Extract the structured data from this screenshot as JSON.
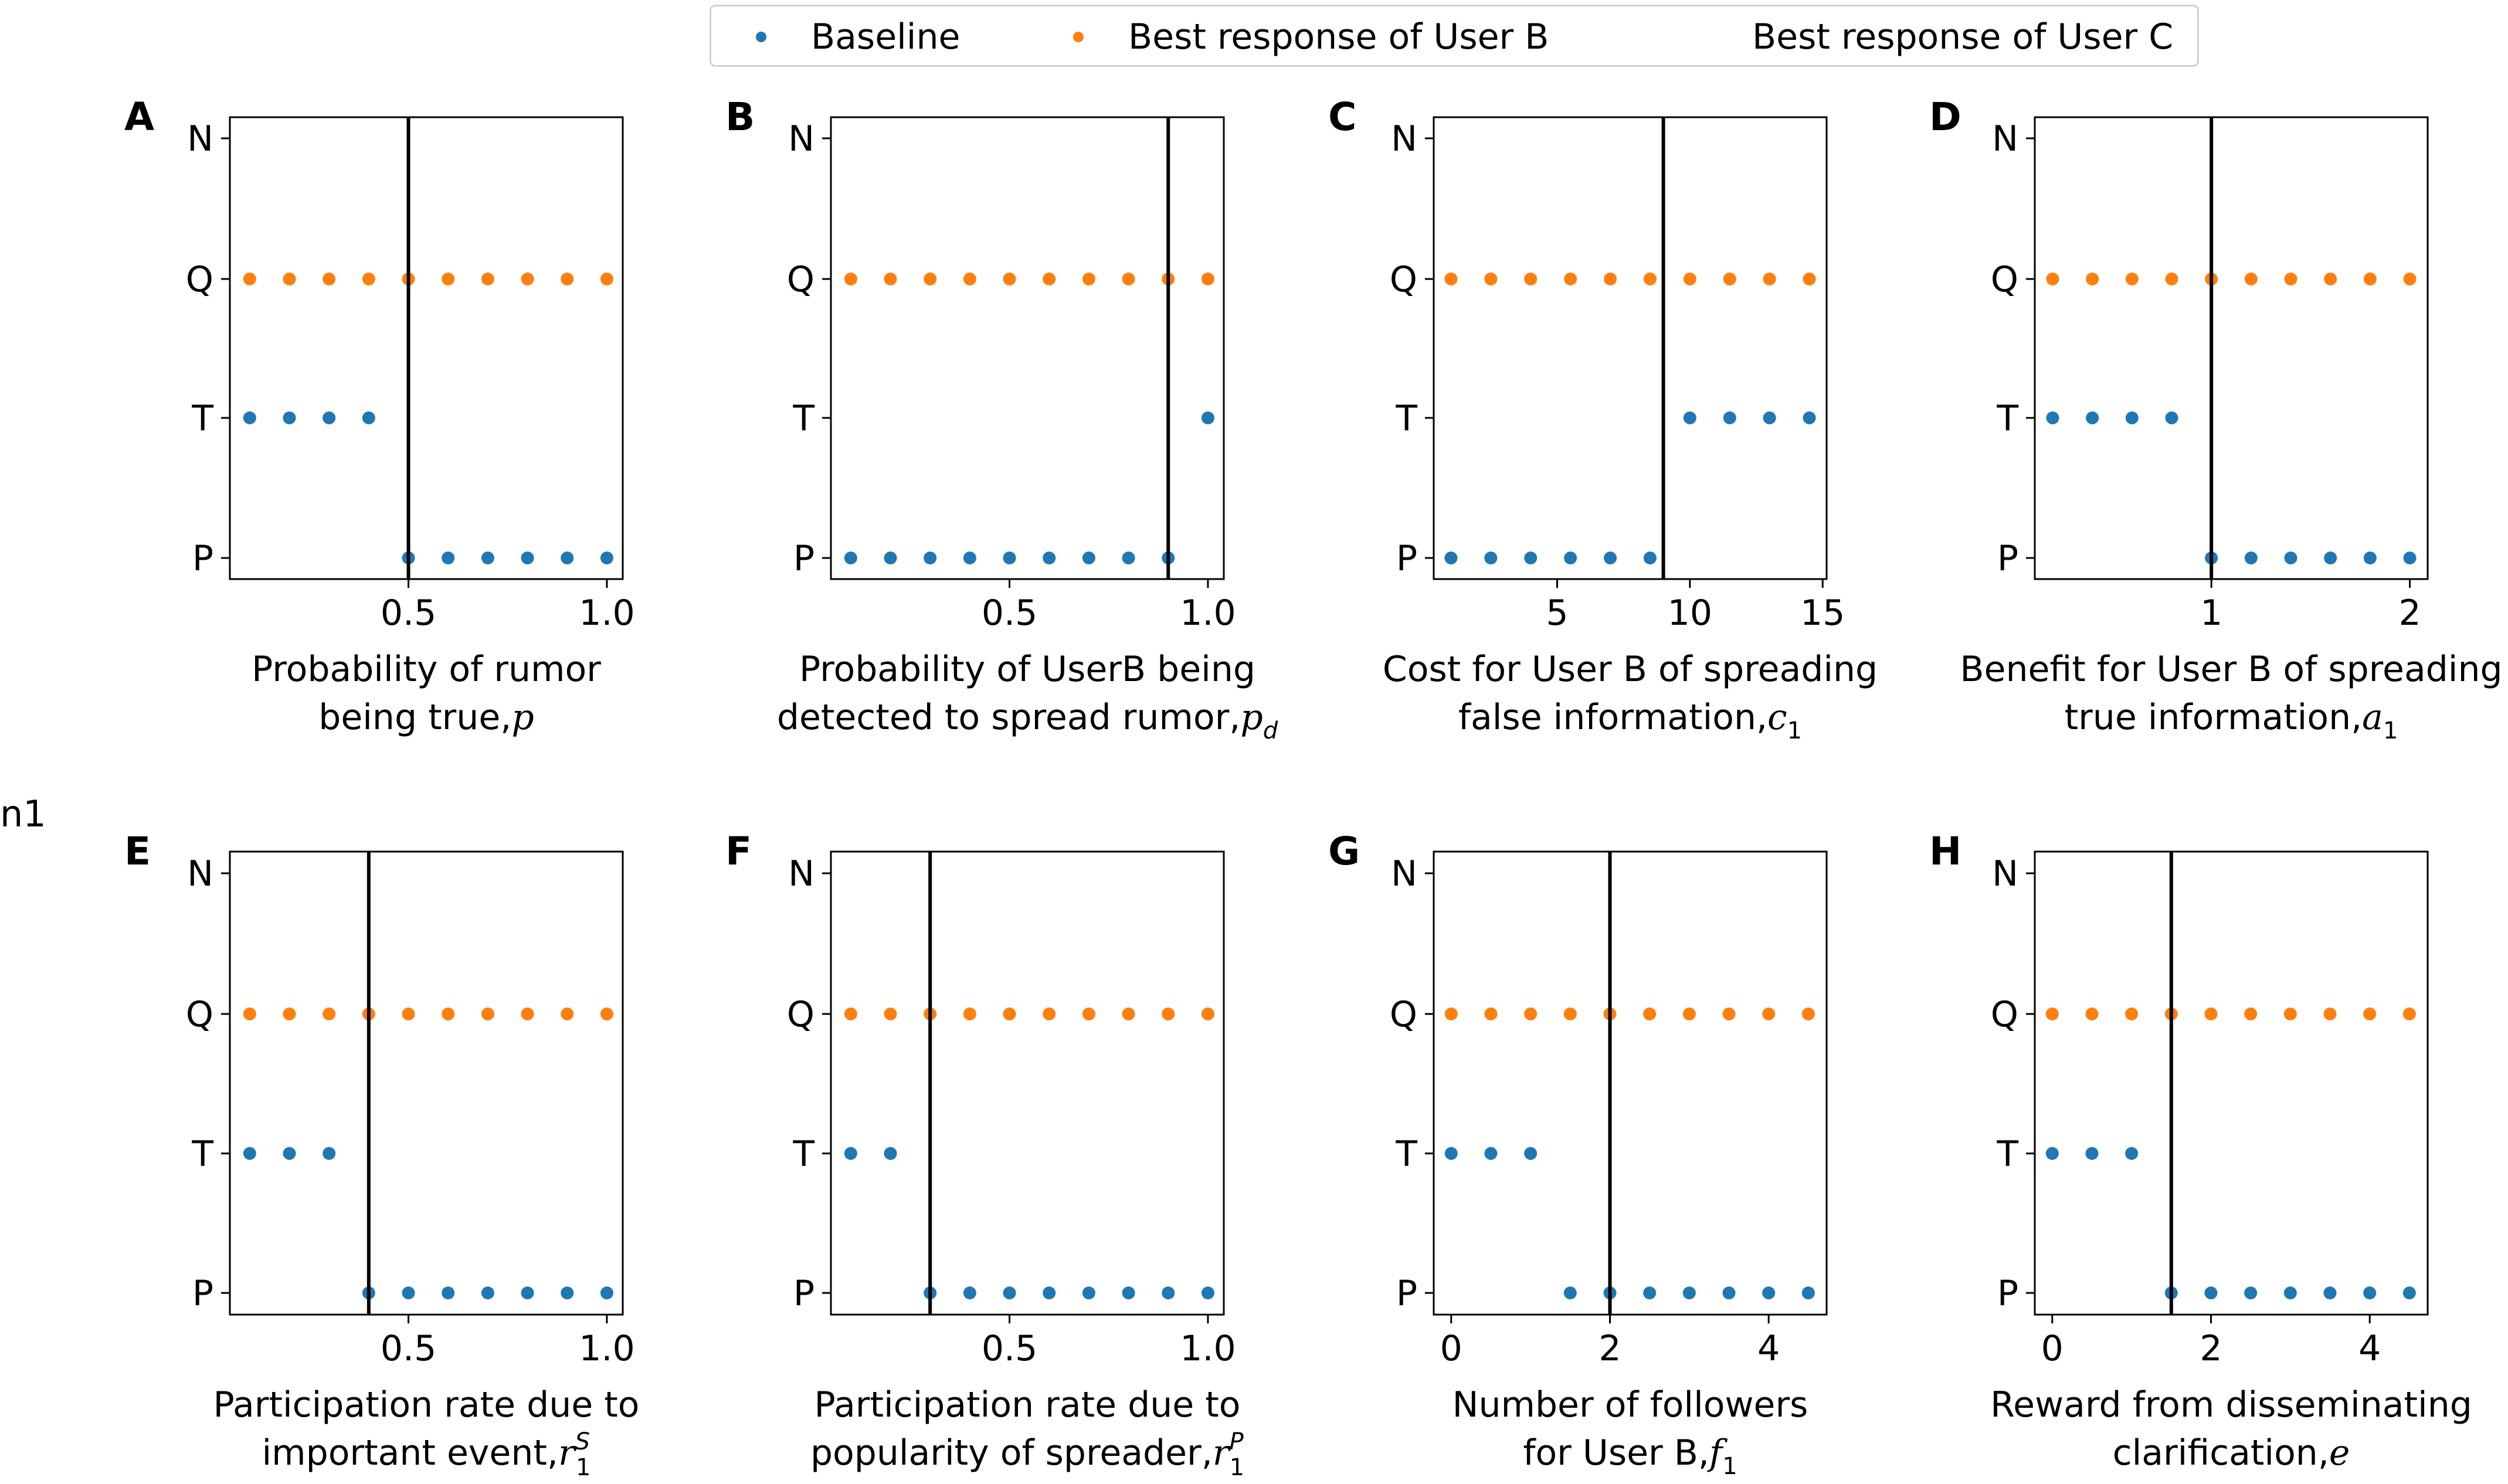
{
  "legend": {
    "baseline": "Baseline",
    "user_b": "Best response of User B",
    "user_c": "Best response of User C",
    "colors": {
      "baseline": "#1f77b4",
      "user_b": "#ff7f0e"
    }
  },
  "stray_text": "n1",
  "chart_data": [
    {
      "type": "scatter",
      "letter": "A",
      "xlabel": [
        "Probability of rumor",
        "being true,"
      ],
      "xvar": "p",
      "xsub": "",
      "xlim": [
        0.05,
        1.04
      ],
      "xticks": [
        0.5,
        1.0
      ],
      "xtick_labels": [
        "0.5",
        "1.0"
      ],
      "y_categories": [
        "P",
        "T",
        "Q",
        "N"
      ],
      "vline": 0.5,
      "series": [
        {
          "name": "Baseline",
          "x": [
            0.1,
            0.2,
            0.3,
            0.4,
            0.5,
            0.6,
            0.7,
            0.8,
            0.9,
            1.0
          ],
          "y": [
            "T",
            "T",
            "T",
            "T",
            "P",
            "P",
            "P",
            "P",
            "P",
            "P"
          ]
        },
        {
          "name": "Best response of User B",
          "x": [
            0.1,
            0.2,
            0.3,
            0.4,
            0.5,
            0.6,
            0.7,
            0.8,
            0.9,
            1.0
          ],
          "y": [
            "Q",
            "Q",
            "Q",
            "Q",
            "Q",
            "Q",
            "Q",
            "Q",
            "Q",
            "Q"
          ]
        }
      ]
    },
    {
      "type": "scatter",
      "letter": "B",
      "xlabel": [
        "Probability of UserB being",
        "detected to spread rumor,"
      ],
      "xvar": "p",
      "xsub": "d",
      "xlim": [
        0.05,
        1.04
      ],
      "xticks": [
        0.5,
        1.0
      ],
      "xtick_labels": [
        "0.5",
        "1.0"
      ],
      "y_categories": [
        "P",
        "T",
        "Q",
        "N"
      ],
      "vline": 0.9,
      "series": [
        {
          "name": "Baseline",
          "x": [
            0.1,
            0.2,
            0.3,
            0.4,
            0.5,
            0.6,
            0.7,
            0.8,
            0.9,
            1.0
          ],
          "y": [
            "P",
            "P",
            "P",
            "P",
            "P",
            "P",
            "P",
            "P",
            "P",
            "T"
          ]
        },
        {
          "name": "Best response of User B",
          "x": [
            0.1,
            0.2,
            0.3,
            0.4,
            0.5,
            0.6,
            0.7,
            0.8,
            0.9,
            1.0
          ],
          "y": [
            "Q",
            "Q",
            "Q",
            "Q",
            "Q",
            "Q",
            "Q",
            "Q",
            "Q",
            "Q"
          ]
        }
      ]
    },
    {
      "type": "scatter",
      "letter": "C",
      "xlabel": [
        "Cost for User B of spreading",
        "false information,"
      ],
      "xvar": "c",
      "xsub": "1",
      "xlim": [
        0.35,
        15.15
      ],
      "xticks": [
        5,
        10,
        15
      ],
      "xtick_labels": [
        "5",
        "10",
        "15"
      ],
      "y_categories": [
        "P",
        "T",
        "Q",
        "N"
      ],
      "vline": 9,
      "series": [
        {
          "name": "Baseline",
          "x": [
            1,
            2.5,
            4,
            5.5,
            7,
            8.5,
            10,
            11.5,
            13,
            14.5
          ],
          "y": [
            "P",
            "P",
            "P",
            "P",
            "P",
            "P",
            "T",
            "T",
            "T",
            "T"
          ]
        },
        {
          "name": "Best response of User B",
          "x": [
            1,
            2.5,
            4,
            5.5,
            7,
            8.5,
            10,
            11.5,
            13,
            14.5
          ],
          "y": [
            "Q",
            "Q",
            "Q",
            "Q",
            "Q",
            "Q",
            "Q",
            "Q",
            "Q",
            "Q"
          ]
        }
      ]
    },
    {
      "type": "scatter",
      "letter": "D",
      "xlabel": [
        "Benefit for User B of spreading",
        "true information,"
      ],
      "xvar": "a",
      "xsub": "1",
      "xlim": [
        0.11,
        2.09
      ],
      "xticks": [
        1,
        2
      ],
      "xtick_labels": [
        "1",
        "2"
      ],
      "y_categories": [
        "P",
        "T",
        "Q",
        "N"
      ],
      "vline": 1,
      "series": [
        {
          "name": "Baseline",
          "x": [
            0.2,
            0.4,
            0.6,
            0.8,
            1.0,
            1.2,
            1.4,
            1.6,
            1.8,
            2.0
          ],
          "y": [
            "T",
            "T",
            "T",
            "T",
            "P",
            "P",
            "P",
            "P",
            "P",
            "P"
          ]
        },
        {
          "name": "Best response of User B",
          "x": [
            0.2,
            0.4,
            0.6,
            0.8,
            1.0,
            1.2,
            1.4,
            1.6,
            1.8,
            2.0
          ],
          "y": [
            "Q",
            "Q",
            "Q",
            "Q",
            "Q",
            "Q",
            "Q",
            "Q",
            "Q",
            "Q"
          ]
        }
      ]
    },
    {
      "type": "scatter",
      "letter": "E",
      "xlabel": [
        "Participation rate due to",
        "important event,"
      ],
      "xvar": "r",
      "xsub": "1",
      "xsup": "S",
      "xlim": [
        0.05,
        1.04
      ],
      "xticks": [
        0.5,
        1.0
      ],
      "xtick_labels": [
        "0.5",
        "1.0"
      ],
      "y_categories": [
        "P",
        "T",
        "Q",
        "N"
      ],
      "vline": 0.4,
      "series": [
        {
          "name": "Baseline",
          "x": [
            0.1,
            0.2,
            0.3,
            0.4,
            0.5,
            0.6,
            0.7,
            0.8,
            0.9,
            1.0
          ],
          "y": [
            "T",
            "T",
            "T",
            "P",
            "P",
            "P",
            "P",
            "P",
            "P",
            "P"
          ]
        },
        {
          "name": "Best response of User B",
          "x": [
            0.1,
            0.2,
            0.3,
            0.4,
            0.5,
            0.6,
            0.7,
            0.8,
            0.9,
            1.0
          ],
          "y": [
            "Q",
            "Q",
            "Q",
            "Q",
            "Q",
            "Q",
            "Q",
            "Q",
            "Q",
            "Q"
          ]
        }
      ]
    },
    {
      "type": "scatter",
      "letter": "F",
      "xlabel": [
        "Participation rate due to",
        "popularity of spreader,"
      ],
      "xvar": "r",
      "xsub": "1",
      "xsup": "P",
      "xlim": [
        0.05,
        1.04
      ],
      "xticks": [
        0.5,
        1.0
      ],
      "xtick_labels": [
        "0.5",
        "1.0"
      ],
      "y_categories": [
        "P",
        "T",
        "Q",
        "N"
      ],
      "vline": 0.3,
      "series": [
        {
          "name": "Baseline",
          "x": [
            0.1,
            0.2,
            0.3,
            0.4,
            0.5,
            0.6,
            0.7,
            0.8,
            0.9,
            1.0
          ],
          "y": [
            "T",
            "T",
            "P",
            "P",
            "P",
            "P",
            "P",
            "P",
            "P",
            "P"
          ]
        },
        {
          "name": "Best response of User B",
          "x": [
            0.1,
            0.2,
            0.3,
            0.4,
            0.5,
            0.6,
            0.7,
            0.8,
            0.9,
            1.0
          ],
          "y": [
            "Q",
            "Q",
            "Q",
            "Q",
            "Q",
            "Q",
            "Q",
            "Q",
            "Q",
            "Q"
          ]
        }
      ]
    },
    {
      "type": "scatter",
      "letter": "G",
      "xlabel": [
        "Number of followers",
        "for User B,"
      ],
      "xvar": "f",
      "xsub": "1",
      "xlim": [
        -0.22,
        4.73
      ],
      "xticks": [
        0,
        2,
        4
      ],
      "xtick_labels": [
        "0",
        "2",
        "4"
      ],
      "y_categories": [
        "P",
        "T",
        "Q",
        "N"
      ],
      "vline": 2,
      "series": [
        {
          "name": "Baseline",
          "x": [
            0,
            0.5,
            1,
            1.5,
            2,
            2.5,
            3,
            3.5,
            4,
            4.5
          ],
          "y": [
            "T",
            "T",
            "T",
            "P",
            "P",
            "P",
            "P",
            "P",
            "P",
            "P"
          ]
        },
        {
          "name": "Best response of User B",
          "x": [
            0,
            0.5,
            1,
            1.5,
            2,
            2.5,
            3,
            3.5,
            4,
            4.5
          ],
          "y": [
            "Q",
            "Q",
            "Q",
            "Q",
            "Q",
            "Q",
            "Q",
            "Q",
            "Q",
            "Q"
          ]
        }
      ]
    },
    {
      "type": "scatter",
      "letter": "H",
      "xlabel": [
        "Reward from disseminating",
        "clarification,"
      ],
      "xvar": "e",
      "xsub": "",
      "xlim": [
        -0.22,
        4.73
      ],
      "xticks": [
        0,
        2,
        4
      ],
      "xtick_labels": [
        "0",
        "2",
        "4"
      ],
      "y_categories": [
        "P",
        "T",
        "Q",
        "N"
      ],
      "vline": 1.5,
      "series": [
        {
          "name": "Baseline",
          "x": [
            0,
            0.5,
            1,
            1.5,
            2,
            2.5,
            3,
            3.5,
            4,
            4.5
          ],
          "y": [
            "T",
            "T",
            "T",
            "P",
            "P",
            "P",
            "P",
            "P",
            "P",
            "P"
          ]
        },
        {
          "name": "Best response of User B",
          "x": [
            0,
            0.5,
            1,
            1.5,
            2,
            2.5,
            3,
            3.5,
            4,
            4.5
          ],
          "y": [
            "Q",
            "Q",
            "Q",
            "Q",
            "Q",
            "Q",
            "Q",
            "Q",
            "Q",
            "Q"
          ]
        }
      ]
    }
  ]
}
